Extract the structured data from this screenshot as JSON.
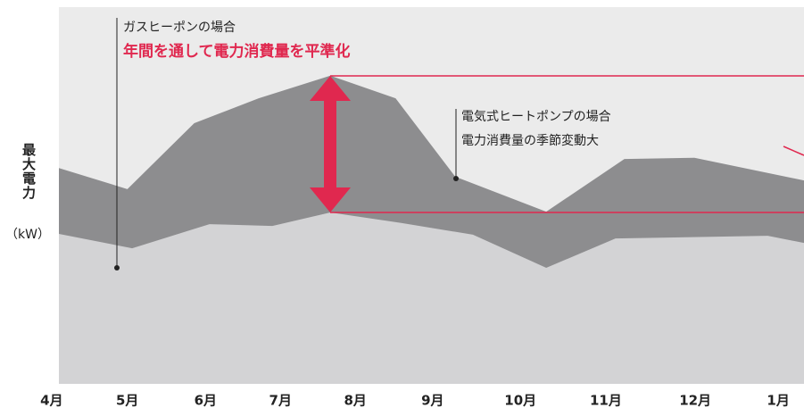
{
  "chart_data": {
    "type": "area",
    "ylabel": "最大電力",
    "yunit": "（kW）",
    "annotations": [
      "ガスヒーポンの場合",
      "年間を通して電力消費量を平準化",
      "電気式ヒートポンプの場合",
      "電力消費量の季節変動大"
    ],
    "xlim": [
      0,
      9.25
    ],
    "ylim": [
      0,
      100
    ],
    "xticks": [
      {
        "value": -0.09,
        "label": "4月"
      },
      {
        "value": 0.85,
        "label": "5月"
      },
      {
        "value": 1.82,
        "label": "6月"
      },
      {
        "value": 2.75,
        "label": "7月"
      },
      {
        "value": 3.68,
        "label": "8月"
      },
      {
        "value": 4.64,
        "label": "9月"
      },
      {
        "value": 5.73,
        "label": "10月"
      },
      {
        "value": 6.79,
        "label": "11月"
      },
      {
        "value": 7.9,
        "label": "12月"
      },
      {
        "value": 8.93,
        "label": "1月"
      }
    ],
    "series": [
      {
        "color": "#8d8d8f",
        "x": [
          0,
          0.85,
          1.68,
          2.48,
          3.37,
          4.18,
          4.92,
          6.05,
          7.02,
          7.89,
          9.25
        ],
        "values": [
          57.3,
          51.7,
          69.2,
          75.8,
          81.8,
          75.8,
          55,
          45.7,
          59.7,
          60,
          54
        ]
      },
      {
        "color": "#d3d3d5",
        "x": [
          0,
          0.91,
          1.87,
          2.65,
          3.37,
          4.25,
          5.14,
          6.05,
          6.91,
          8.8,
          9.25
        ],
        "values": [
          39.8,
          36,
          42.4,
          41.9,
          45.5,
          42.7,
          39.6,
          30.8,
          38.6,
          39.3,
          37.4
        ]
      }
    ]
  }
}
